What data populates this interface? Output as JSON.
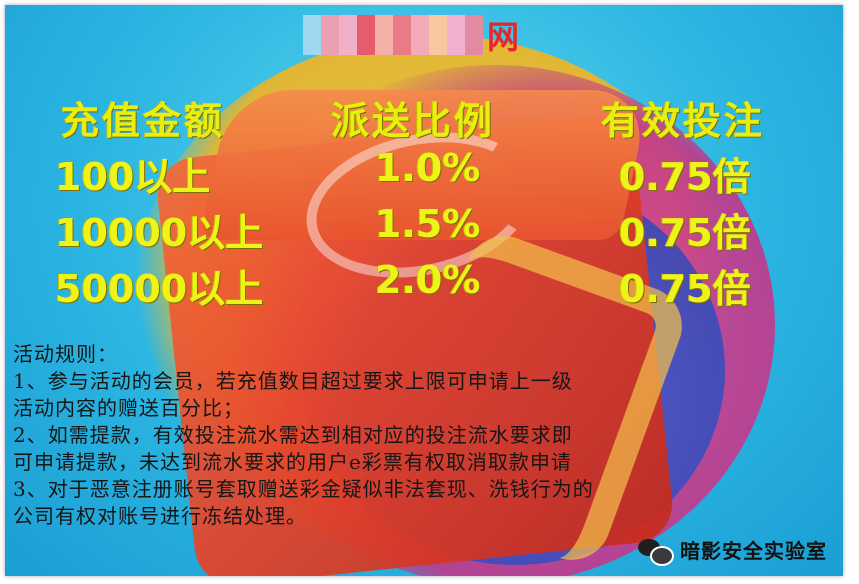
{
  "header": {
    "logo_char": "网"
  },
  "table": {
    "headers": [
      "充值金额",
      "派送比例",
      "有效投注"
    ],
    "rows": [
      [
        "100以上",
        "1.0%",
        "0.75倍"
      ],
      [
        "10000以上",
        "1.5%",
        "0.75倍"
      ],
      [
        "50000以上",
        "2.0%",
        "0.75倍"
      ]
    ]
  },
  "rules": {
    "lines": [
      "活动规则：",
      "1、参与活动的会员，若充值数目超过要求上限可申请上一级",
      "活动内容的赠送百分比；",
      "2、如需提款，有效投注流水需达到相对应的投注流水要求即",
      "可申请提款，未达到流水要求的用户e彩票有权取消取款申请",
      "3、对于恶意注册账号套取赠送彩金疑似非法套现、洗钱行为的",
      "公司有权对账号进行冻结处理。"
    ]
  },
  "watermark": {
    "text": "暗影安全实验室",
    "icon": "wechat-icon"
  },
  "colors": {
    "table_text": "#eef41a",
    "header_char": "#e6262b",
    "background": "#2cb6e2"
  }
}
